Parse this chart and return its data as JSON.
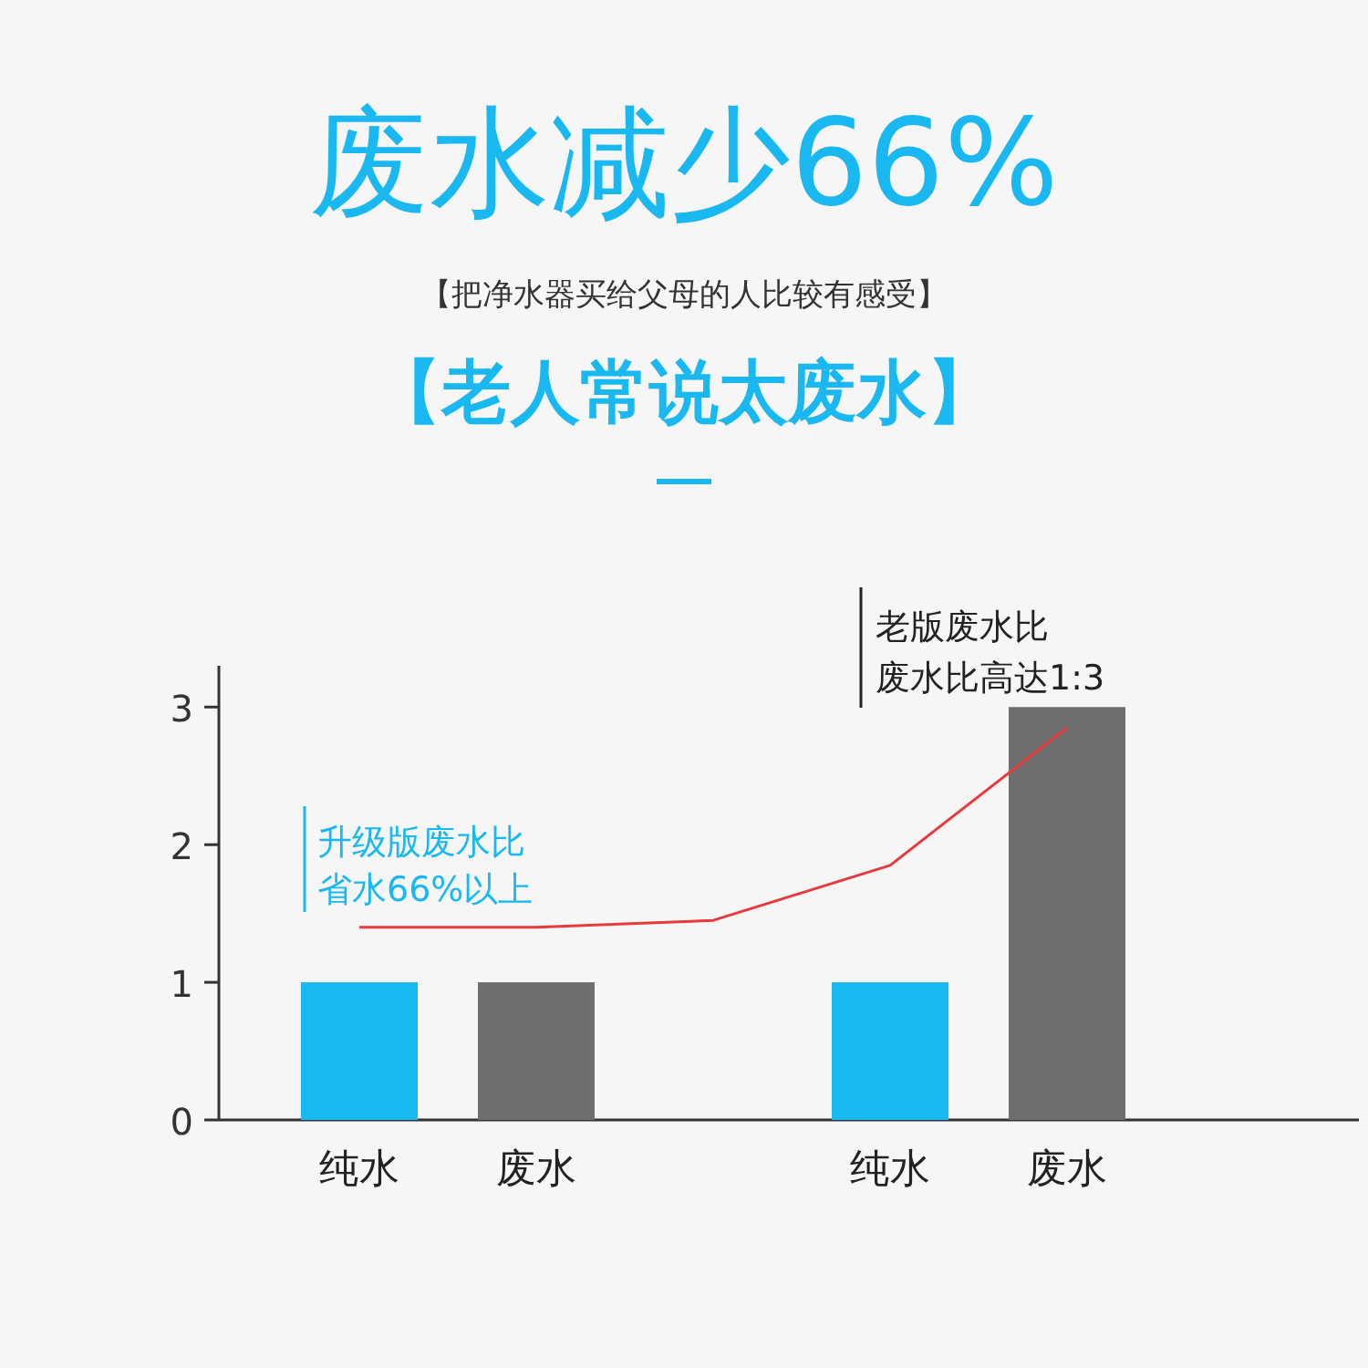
{
  "chart_data": {
    "type": "bar",
    "title": "废水减少66%",
    "subtitle": "【把净水器买给父母的人比较有感受】",
    "categories": [
      "纯水",
      "废水",
      null,
      "纯水",
      "废水"
    ],
    "series": [
      {
        "colors": [
          "#1ab8f0",
          "#6e6e6e",
          null,
          "#1ab8f0",
          "#6e6e6e"
        ],
        "values": [
          1,
          1,
          null,
          1,
          3
        ]
      },
      {
        "type": "line",
        "color": "#e8393c",
        "values": [
          1.4,
          1.4,
          1.45,
          1.85,
          2.85
        ]
      }
    ],
    "ylim": [
      0,
      3.3
    ],
    "yticks": [
      0,
      1,
      2,
      3
    ],
    "annotations": [
      "【老人常说太废水】",
      "升级版废水比",
      "省水66%以上",
      "老版废水比",
      "废水比高达1:3"
    ]
  }
}
